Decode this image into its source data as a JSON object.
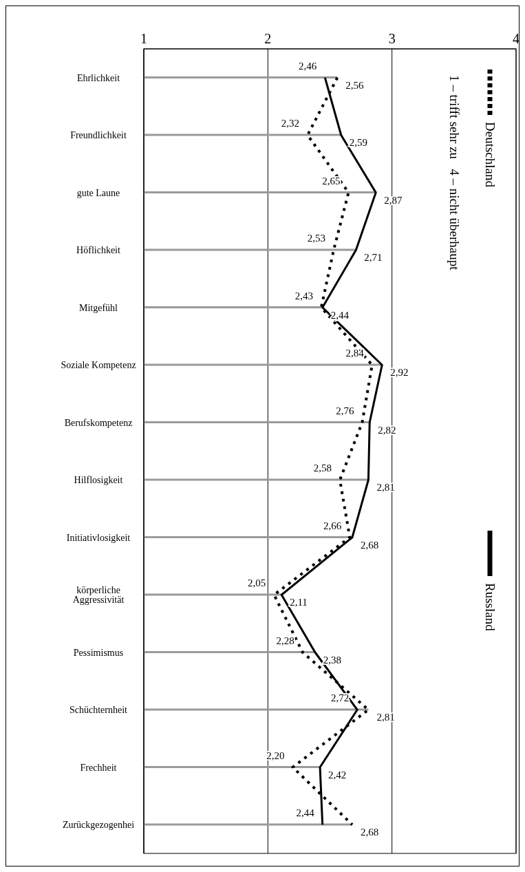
{
  "chart_data": {
    "type": "line",
    "orientation": "horizontal",
    "categories": [
      "Ehrlichkeit",
      "Freundlichkeit",
      "gute Laune",
      "Höflichkeit",
      "Mitgefühl",
      "Soziale Kompetenz",
      "Berufskompetenz",
      "Hilflosigkeit",
      "Initiativlosigkeit",
      "körperliche Aggressivität",
      "Pessimismus",
      "Schüchternheit",
      "Frechheit",
      "Zurückgezogenhei"
    ],
    "series": [
      {
        "name": "Deutschland",
        "color": "#000000",
        "line_style": "dotted",
        "values": [
          2.56,
          2.32,
          2.65,
          2.53,
          2.43,
          2.84,
          2.76,
          2.58,
          2.66,
          2.05,
          2.28,
          2.81,
          2.2,
          2.68
        ],
        "value_labels": [
          "2,56",
          "2,32",
          "2,65",
          "2,53",
          "2,43",
          "2,84",
          "2,76",
          "2,58",
          "2,66",
          "2,05",
          "2,28",
          "2,81",
          "2,20",
          "2,68"
        ]
      },
      {
        "name": "Russland",
        "color": "#000000",
        "line_style": "solid",
        "values": [
          2.46,
          2.59,
          2.87,
          2.71,
          2.44,
          2.92,
          2.82,
          2.81,
          2.68,
          2.11,
          2.38,
          2.72,
          2.42,
          2.44
        ],
        "value_labels": [
          "2,46",
          "2,59",
          "2,87",
          "2,71",
          "2,44",
          "2,92",
          "2,82",
          "2,81",
          "2,68",
          "2,11",
          "2,38",
          "2,72",
          "2,42",
          "2,44"
        ]
      },
      {
        "type": "bar",
        "color": "#9a9a9a",
        "values": [
          2.56,
          2.59,
          2.87,
          2.71,
          2.44,
          2.92,
          2.82,
          2.81,
          2.68,
          2.11,
          2.38,
          2.81,
          2.42,
          2.68
        ]
      }
    ],
    "xlim": [
      1,
      4
    ],
    "xticks": [
      1,
      2,
      3,
      4
    ],
    "grid": "x",
    "legend": "right",
    "marker": "none",
    "annotations": [
      "1 – trifft sehr zu   4 – nicht überhaupt"
    ]
  }
}
